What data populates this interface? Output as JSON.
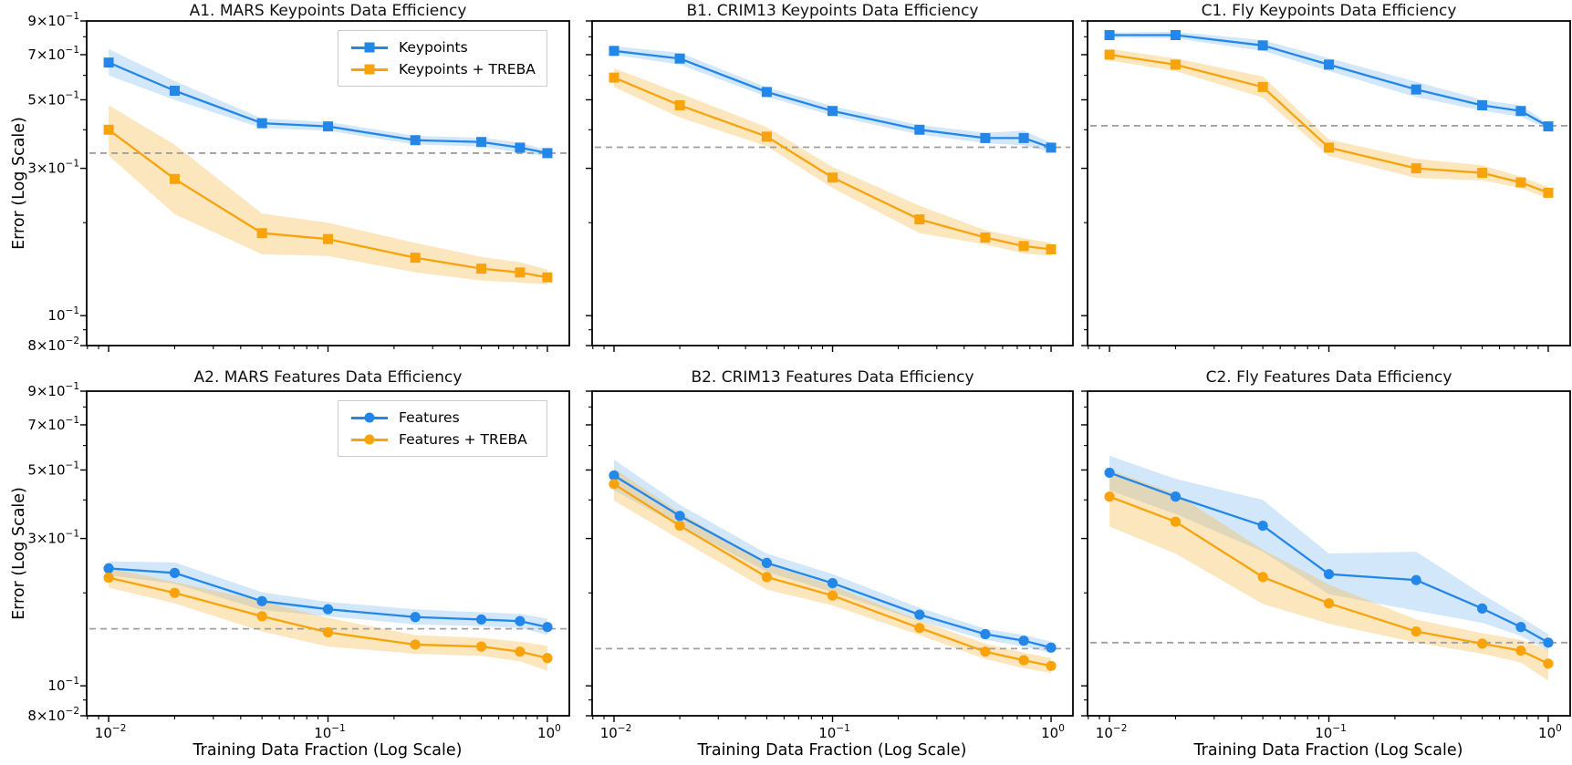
{
  "figure": {
    "ylabel": "Error (Log Scale)",
    "xlabel": "Training Data Fraction (Log Scale)",
    "background": "#ffffff",
    "colors": {
      "blue_line": "#2287e8",
      "blue_band": "#7db9f0",
      "orange_line": "#f9a30b",
      "orange_band": "#f7bd55",
      "dashed_gray": "#a0a0a0",
      "axis": "#000000"
    },
    "legend_top": {
      "items": [
        {
          "label": "Keypoints",
          "marker": "square",
          "color": "#2287e8"
        },
        {
          "label": "Keypoints + TREBA",
          "marker": "square",
          "color": "#f9a30b"
        }
      ]
    },
    "legend_bottom": {
      "items": [
        {
          "label": "Features",
          "marker": "circle",
          "color": "#2287e8"
        },
        {
          "label": "Features + TREBA",
          "marker": "circle",
          "color": "#f9a30b"
        }
      ]
    },
    "axes": {
      "x_major": [
        {
          "v": 0.01,
          "label": "10^−2"
        },
        {
          "v": 0.1,
          "label": "10^−1"
        },
        {
          "v": 1.0,
          "label": "10^0"
        }
      ],
      "x_minor": [
        0.008,
        0.009,
        0.02,
        0.03,
        0.04,
        0.05,
        0.06,
        0.07,
        0.08,
        0.09,
        0.2,
        0.3,
        0.4,
        0.5,
        0.6,
        0.7,
        0.8,
        0.9
      ],
      "y_ticks": [
        0.9,
        0.8,
        0.7,
        0.6,
        0.5,
        0.4,
        0.3,
        0.2,
        0.1,
        0.09,
        0.08
      ],
      "y_labeled": [
        {
          "v": 0.9,
          "label": "9×10^−1"
        },
        {
          "v": 0.7,
          "label": "7×10^−1"
        },
        {
          "v": 0.5,
          "label": "5×10^−1"
        },
        {
          "v": 0.3,
          "label": "3×10^−1"
        },
        {
          "v": 0.1,
          "label": "10^−1"
        },
        {
          "v": 0.08,
          "label": "8×10^−2"
        }
      ]
    }
  },
  "chart_data": [
    {
      "id": "a1",
      "row": 1,
      "col": 1,
      "type": "line",
      "title": "A1. MARS Keypoints Data Efficiency",
      "xscale": "log",
      "yscale": "log",
      "xlim": [
        0.00794,
        1.259
      ],
      "ylim": [
        0.08,
        0.9
      ],
      "x": [
        0.01,
        0.02,
        0.05,
        0.1,
        0.25,
        0.5,
        0.75,
        1.0
      ],
      "show_legend": "top",
      "show_y_tick_labels": true,
      "show_x_tick_labels": false,
      "baseline_dashed_y": 0.336,
      "series": [
        {
          "name": "Keypoints",
          "marker": "square",
          "color": "#2287e8",
          "band_color": "#7db9f0",
          "values": [
            0.66,
            0.535,
            0.42,
            0.41,
            0.37,
            0.365,
            0.35,
            0.336
          ],
          "band_lower": [
            0.6,
            0.5,
            0.405,
            0.397,
            0.358,
            0.353,
            0.337,
            0.328
          ],
          "band_upper": [
            0.73,
            0.575,
            0.435,
            0.424,
            0.382,
            0.377,
            0.363,
            0.344
          ]
        },
        {
          "name": "Keypoints + TREBA",
          "marker": "square",
          "color": "#f9a30b",
          "band_color": "#f7bd55",
          "values": [
            0.4,
            0.277,
            0.185,
            0.177,
            0.154,
            0.142,
            0.138,
            0.133
          ],
          "band_lower": [
            0.33,
            0.213,
            0.158,
            0.156,
            0.138,
            0.13,
            0.128,
            0.126
          ],
          "band_upper": [
            0.48,
            0.358,
            0.214,
            0.2,
            0.172,
            0.155,
            0.149,
            0.141
          ]
        }
      ]
    },
    {
      "id": "b1",
      "row": 1,
      "col": 2,
      "type": "line",
      "title": "B1. CRIM13 Keypoints Data Efficiency",
      "xscale": "log",
      "yscale": "log",
      "xlim": [
        0.00794,
        1.259
      ],
      "ylim": [
        0.08,
        0.9
      ],
      "x": [
        0.01,
        0.02,
        0.05,
        0.1,
        0.25,
        0.5,
        0.75,
        1.0
      ],
      "show_legend": null,
      "show_y_tick_labels": false,
      "show_x_tick_labels": false,
      "baseline_dashed_y": 0.351,
      "series": [
        {
          "name": "Keypoints",
          "marker": "square",
          "color": "#2287e8",
          "band_color": "#7db9f0",
          "values": [
            0.72,
            0.68,
            0.53,
            0.46,
            0.4,
            0.376,
            0.376,
            0.35
          ],
          "band_lower": [
            0.7,
            0.65,
            0.512,
            0.444,
            0.386,
            0.362,
            0.356,
            0.338
          ],
          "band_upper": [
            0.745,
            0.71,
            0.549,
            0.477,
            0.414,
            0.391,
            0.397,
            0.363
          ]
        },
        {
          "name": "Keypoints + TREBA",
          "marker": "square",
          "color": "#f9a30b",
          "band_color": "#f7bd55",
          "values": [
            0.59,
            0.48,
            0.38,
            0.28,
            0.205,
            0.179,
            0.168,
            0.164
          ],
          "band_lower": [
            0.55,
            0.438,
            0.354,
            0.259,
            0.185,
            0.17,
            0.159,
            0.156
          ],
          "band_upper": [
            0.633,
            0.525,
            0.408,
            0.303,
            0.227,
            0.189,
            0.178,
            0.172
          ]
        }
      ]
    },
    {
      "id": "c1",
      "row": 1,
      "col": 3,
      "type": "line",
      "title": "C1. Fly Keypoints Data Efficiency",
      "xscale": "log",
      "yscale": "log",
      "xlim": [
        0.00794,
        1.259
      ],
      "ylim": [
        0.08,
        0.9
      ],
      "x": [
        0.01,
        0.02,
        0.05,
        0.1,
        0.25,
        0.5,
        0.75,
        1.0
      ],
      "show_legend": null,
      "show_y_tick_labels": false,
      "show_x_tick_labels": false,
      "baseline_dashed_y": 0.412,
      "series": [
        {
          "name": "Keypoints",
          "marker": "square",
          "color": "#2287e8",
          "band_color": "#7db9f0",
          "values": [
            0.81,
            0.81,
            0.75,
            0.65,
            0.54,
            0.48,
            0.46,
            0.41
          ],
          "band_lower": [
            0.795,
            0.79,
            0.72,
            0.62,
            0.51,
            0.461,
            0.441,
            0.401
          ],
          "band_upper": [
            0.825,
            0.83,
            0.78,
            0.682,
            0.572,
            0.5,
            0.48,
            0.419
          ]
        },
        {
          "name": "Keypoints + TREBA",
          "marker": "square",
          "color": "#f9a30b",
          "band_color": "#f7bd55",
          "values": [
            0.7,
            0.65,
            0.55,
            0.35,
            0.3,
            0.29,
            0.27,
            0.25
          ],
          "band_lower": [
            0.67,
            0.62,
            0.508,
            0.329,
            0.279,
            0.274,
            0.259,
            0.239
          ],
          "band_upper": [
            0.731,
            0.681,
            0.595,
            0.372,
            0.322,
            0.307,
            0.282,
            0.261
          ]
        }
      ]
    },
    {
      "id": "a2",
      "row": 2,
      "col": 1,
      "type": "line",
      "title": "A2. MARS Features Data Efficiency",
      "xscale": "log",
      "yscale": "log",
      "xlim": [
        0.00794,
        1.259
      ],
      "ylim": [
        0.08,
        0.9
      ],
      "x": [
        0.01,
        0.02,
        0.05,
        0.1,
        0.25,
        0.5,
        0.75,
        1.0
      ],
      "show_legend": "bottom",
      "show_y_tick_labels": true,
      "show_x_tick_labels": true,
      "baseline_dashed_y": 0.153,
      "series": [
        {
          "name": "Features",
          "marker": "circle",
          "color": "#2287e8",
          "band_color": "#7db9f0",
          "values": [
            0.24,
            0.232,
            0.188,
            0.177,
            0.167,
            0.164,
            0.162,
            0.155
          ],
          "band_lower": [
            0.228,
            0.214,
            0.176,
            0.168,
            0.158,
            0.156,
            0.154,
            0.146
          ],
          "band_upper": [
            0.253,
            0.251,
            0.201,
            0.187,
            0.177,
            0.173,
            0.171,
            0.165
          ]
        },
        {
          "name": "Features + TREBA",
          "marker": "circle",
          "color": "#f9a30b",
          "band_color": "#f7bd55",
          "values": [
            0.224,
            0.2,
            0.168,
            0.149,
            0.136,
            0.134,
            0.129,
            0.123
          ],
          "band_lower": [
            0.208,
            0.185,
            0.15,
            0.134,
            0.127,
            0.125,
            0.12,
            0.112
          ],
          "band_upper": [
            0.241,
            0.217,
            0.188,
            0.166,
            0.146,
            0.143,
            0.139,
            0.135
          ]
        }
      ]
    },
    {
      "id": "b2",
      "row": 2,
      "col": 2,
      "type": "line",
      "title": "B2. CRIM13 Features Data Efficiency",
      "xscale": "log",
      "yscale": "log",
      "xlim": [
        0.00794,
        1.259
      ],
      "ylim": [
        0.08,
        0.9
      ],
      "x": [
        0.01,
        0.02,
        0.05,
        0.1,
        0.25,
        0.5,
        0.75,
        1.0
      ],
      "show_legend": null,
      "show_y_tick_labels": false,
      "show_x_tick_labels": true,
      "baseline_dashed_y": 0.132,
      "series": [
        {
          "name": "Features",
          "marker": "circle",
          "color": "#2287e8",
          "band_color": "#7db9f0",
          "values": [
            0.48,
            0.355,
            0.25,
            0.215,
            0.17,
            0.147,
            0.14,
            0.133
          ],
          "band_lower": [
            0.43,
            0.329,
            0.234,
            0.201,
            0.162,
            0.141,
            0.134,
            0.128
          ],
          "band_upper": [
            0.54,
            0.386,
            0.268,
            0.23,
            0.179,
            0.153,
            0.146,
            0.139
          ]
        },
        {
          "name": "Features + TREBA",
          "marker": "circle",
          "color": "#f9a30b",
          "band_color": "#f7bd55",
          "values": [
            0.45,
            0.33,
            0.225,
            0.196,
            0.154,
            0.129,
            0.121,
            0.116
          ],
          "band_lower": [
            0.398,
            0.298,
            0.205,
            0.182,
            0.146,
            0.122,
            0.114,
            0.11
          ],
          "band_upper": [
            0.506,
            0.364,
            0.248,
            0.211,
            0.163,
            0.137,
            0.128,
            0.123
          ]
        }
      ]
    },
    {
      "id": "c2",
      "row": 2,
      "col": 3,
      "type": "line",
      "title": "C2. Fly Features Data Efficiency",
      "xscale": "log",
      "yscale": "log",
      "xlim": [
        0.00794,
        1.259
      ],
      "ylim": [
        0.08,
        0.9
      ],
      "x": [
        0.01,
        0.02,
        0.05,
        0.1,
        0.25,
        0.5,
        0.75,
        1.0
      ],
      "show_legend": null,
      "show_y_tick_labels": false,
      "show_x_tick_labels": true,
      "baseline_dashed_y": 0.138,
      "series": [
        {
          "name": "Features",
          "marker": "circle",
          "color": "#2287e8",
          "band_color": "#7db9f0",
          "values": [
            0.49,
            0.41,
            0.33,
            0.23,
            0.22,
            0.178,
            0.155,
            0.138
          ],
          "band_lower": [
            0.43,
            0.36,
            0.272,
            0.198,
            0.175,
            0.16,
            0.145,
            0.13
          ],
          "band_upper": [
            0.556,
            0.468,
            0.4,
            0.268,
            0.272,
            0.198,
            0.167,
            0.147
          ]
        },
        {
          "name": "Features + TREBA",
          "marker": "circle",
          "color": "#f9a30b",
          "band_color": "#f7bd55",
          "values": [
            0.41,
            0.34,
            0.225,
            0.185,
            0.15,
            0.137,
            0.13,
            0.118
          ],
          "band_lower": [
            0.328,
            0.268,
            0.184,
            0.159,
            0.138,
            0.127,
            0.119,
            0.104
          ],
          "band_upper": [
            0.5,
            0.42,
            0.276,
            0.213,
            0.164,
            0.148,
            0.141,
            0.131
          ]
        }
      ]
    }
  ]
}
